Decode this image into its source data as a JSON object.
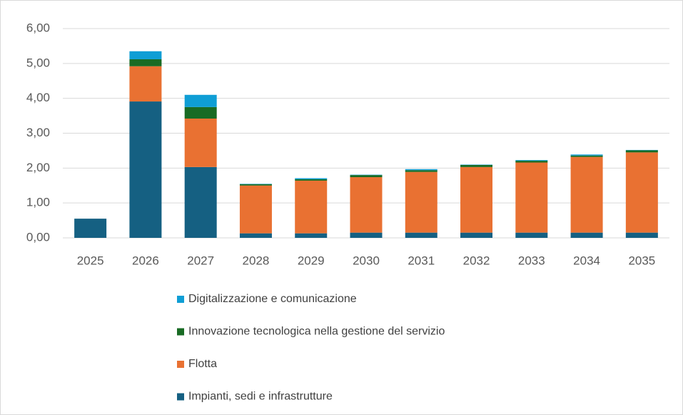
{
  "chart_data": {
    "type": "stacked_bar",
    "categories": [
      "2025",
      "2026",
      "2027",
      "2028",
      "2029",
      "2030",
      "2031",
      "2032",
      "2033",
      "2034",
      "2035"
    ],
    "series": [
      {
        "name": "Impianti, sedi e infrastrutture",
        "color": "#156082",
        "values": [
          0.55,
          3.91,
          2.03,
          0.13,
          0.13,
          0.15,
          0.15,
          0.15,
          0.15,
          0.15,
          0.15
        ]
      },
      {
        "name": "Flotta",
        "color": "#e97132",
        "values": [
          0,
          1.01,
          1.39,
          1.37,
          1.51,
          1.59,
          1.74,
          1.88,
          2.01,
          2.17,
          2.3
        ]
      },
      {
        "name": "Innovazione tecnologica nella gestione del servizio",
        "color": "#196b24",
        "values": [
          0,
          0.2,
          0.33,
          0.04,
          0.04,
          0.06,
          0.05,
          0.06,
          0.05,
          0.04,
          0.06
        ]
      },
      {
        "name": "Digitalizzazione e comunicazione",
        "color": "#0f9ed5",
        "values": [
          0,
          0.23,
          0.35,
          0.01,
          0.03,
          0.01,
          0.03,
          0.01,
          0.02,
          0.03,
          0.01
        ]
      }
    ],
    "ylim": [
      0,
      6
    ],
    "yticks": [
      {
        "value": 0,
        "label": "0,00"
      },
      {
        "value": 1,
        "label": "1,00"
      },
      {
        "value": 2,
        "label": "2,00"
      },
      {
        "value": 3,
        "label": "3,00"
      },
      {
        "value": 4,
        "label": "4,00"
      },
      {
        "value": 5,
        "label": "5,00"
      },
      {
        "value": 6,
        "label": "6,00"
      }
    ],
    "grid": true,
    "legend": "bottom"
  }
}
